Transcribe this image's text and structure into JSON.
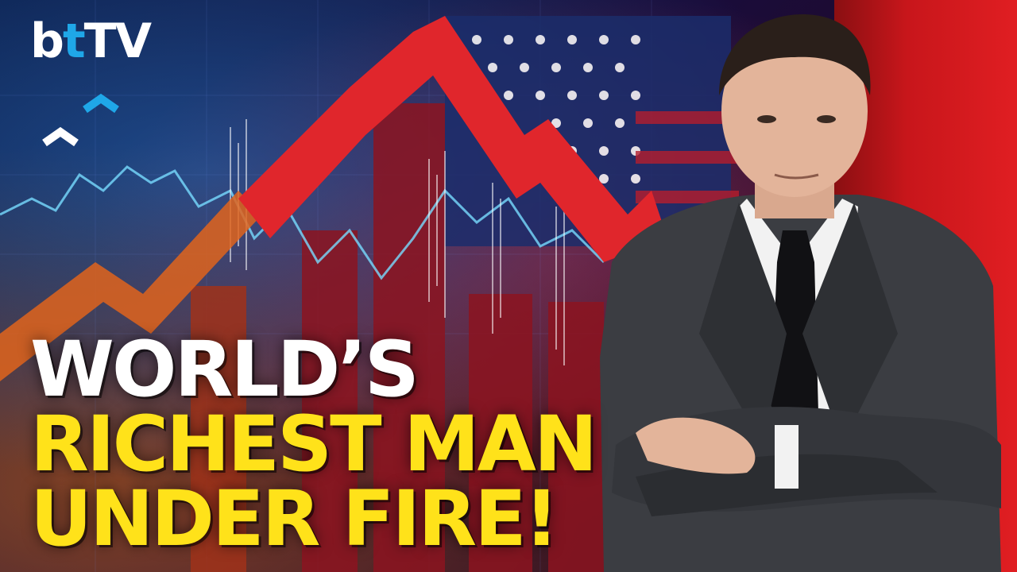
{
  "brand": {
    "b": "b",
    "t": "t",
    "tv": "TV"
  },
  "headline": {
    "line1": "WORLD’S",
    "line2": "RICHEST MAN",
    "line3": "UNDER FIRE!"
  },
  "colors": {
    "headline_white": "#ffffff",
    "headline_yellow": "#ffe21a",
    "logo_accent": "#1fa7e8",
    "arrow_red": "#e0262c",
    "tesla_red": "#e01e22"
  },
  "icons": [
    "chevron-up-icon",
    "chevron-up-icon"
  ]
}
